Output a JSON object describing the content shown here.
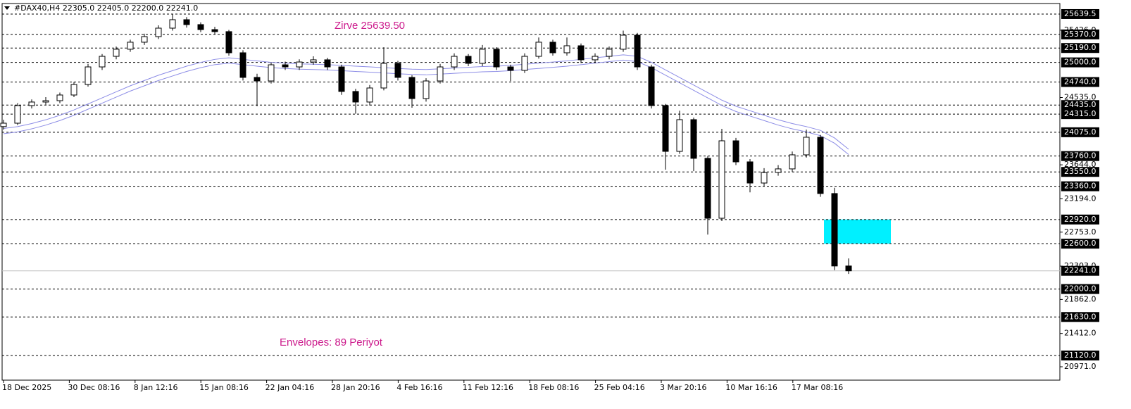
{
  "chart_data": {
    "type": "candlestick",
    "header": "#DAX40,H4  22305.0 22405.0 22200.0 22241.0",
    "annotations": [
      "Zirve 25639.50",
      "Envelopes: 89 Periyot"
    ],
    "x_labels": [
      "18 Dec 2025",
      "30 Dec 08:16",
      "8 Jan 12:16",
      "15 Jan 08:16",
      "22 Jan 04:16",
      "28 Jan 20:16",
      "4 Feb 16:16",
      "11 Feb 12:16",
      "18 Feb 08:16",
      "25 Feb 04:16",
      "3 Mar 20:16",
      "10 Mar 16:16",
      "17 Mar 08:16"
    ],
    "open": [
      24150,
      24195,
      24428,
      24475,
      24493,
      24568,
      24707,
      24940,
      25080,
      25174,
      25267,
      25341,
      25453,
      25565,
      25500,
      25434,
      25407,
      25127,
      24801,
      24754,
      24968,
      24940,
      25005,
      25034,
      24940,
      24615,
      24475,
      24661,
      24987,
      24801,
      24521,
      24754,
      24940,
      25080,
      24987,
      25174,
      24940,
      24894,
      25080,
      25267,
      25127,
      25220,
      25034,
      25080,
      25174,
      25360,
      24940,
      24428,
      23822,
      24242,
      23730,
      22937,
      23962,
      23683,
      23403,
      23543,
      23590,
      23776,
      24009,
      23264,
      22305
    ],
    "high": [
      24240,
      24460,
      24510,
      24540,
      24600,
      24740,
      24980,
      25110,
      25210,
      25300,
      25380,
      25490,
      25639.5,
      25600,
      25530,
      25470,
      25430,
      25160,
      24850,
      25000,
      25010,
      25040,
      25080,
      25060,
      24970,
      24650,
      24700,
      25200,
      25020,
      24830,
      24790,
      24980,
      25120,
      25110,
      25230,
      25200,
      24970,
      25120,
      25330,
      25300,
      25330,
      25250,
      25120,
      25210,
      25420,
      25390,
      24970,
      24450,
      24360,
      24270,
      23760,
      24120,
      24000,
      23720,
      23600,
      23640,
      23820,
      24110,
      24040,
      23340,
      22405
    ],
    "low": [
      24110,
      24170,
      24390,
      24440,
      24460,
      24540,
      24680,
      24900,
      25040,
      25140,
      25230,
      25310,
      25420,
      25460,
      25400,
      25370,
      25090,
      24760,
      24420,
      24720,
      24900,
      24900,
      24970,
      24900,
      24570,
      24320,
      24430,
      24630,
      24760,
      24400,
      24480,
      24720,
      24900,
      24950,
      24950,
      24900,
      24750,
      24860,
      25050,
      25090,
      25090,
      24990,
      24990,
      25040,
      25140,
      24900,
      24390,
      23580,
      23790,
      23560,
      22720,
      22900,
      23640,
      23280,
      23360,
      23500,
      23550,
      23740,
      23220,
      22250,
      22200
    ],
    "close": [
      24195,
      24428,
      24475,
      24493,
      24568,
      24707,
      24940,
      25080,
      25174,
      25267,
      25341,
      25453,
      25565,
      25500,
      25434,
      25407,
      25127,
      24801,
      24754,
      24968,
      24940,
      25005,
      25034,
      24940,
      24615,
      24475,
      24661,
      24987,
      24801,
      24521,
      24754,
      24940,
      25080,
      24987,
      25174,
      24940,
      24894,
      25080,
      25267,
      25127,
      25220,
      25034,
      25080,
      25174,
      25360,
      24940,
      24428,
      23822,
      24242,
      23730,
      22937,
      23962,
      23683,
      23403,
      23543,
      23590,
      23776,
      24009,
      23264,
      22305,
      22241
    ],
    "up_color": "#ffffff",
    "down_color": "#000000",
    "envelopes": [
      {
        "color": "#8c8ce6",
        "values": [
          24125,
          24150,
          24190,
          24240,
          24300,
          24370,
          24450,
          24530,
          24610,
          24690,
          24760,
          24830,
          24890,
          24950,
          25000,
          25040,
          25060,
          25040,
          25020,
          25000,
          24990,
          24980,
          24975,
          24970,
          24960,
          24950,
          24940,
          24930,
          24920,
          24910,
          24905,
          24915,
          24925,
          24935,
          24945,
          24950,
          24960,
          24975,
          24990,
          25005,
          25020,
          25040,
          25060,
          25080,
          25100,
          25080,
          25000,
          24900,
          24800,
          24700,
          24600,
          24500,
          24420,
          24360,
          24300,
          24240,
          24190,
          24150,
          24100,
          24000,
          23850
        ]
      },
      {
        "color": "#8c8ce6",
        "values": [
          24055,
          24080,
          24120,
          24170,
          24230,
          24300,
          24380,
          24460,
          24540,
          24620,
          24690,
          24760,
          24820,
          24880,
          24930,
          24970,
          24990,
          24970,
          24950,
          24930,
          24920,
          24910,
          24905,
          24900,
          24890,
          24880,
          24870,
          24860,
          24850,
          24840,
          24835,
          24845,
          24855,
          24865,
          24875,
          24880,
          24890,
          24905,
          24920,
          24935,
          24950,
          24970,
          24990,
          25010,
          25030,
          25010,
          24930,
          24830,
          24730,
          24630,
          24530,
          24430,
          24350,
          24290,
          24230,
          24170,
          24120,
          24080,
          24030,
          23930,
          23780
        ]
      }
    ],
    "ylim": [
      20794,
      25779
    ],
    "yticks": [
      {
        "value": 25426,
        "label": "25426.0"
      },
      {
        "value": 24535,
        "label": "24535.0"
      },
      {
        "value": 23644,
        "label": "23644.0"
      },
      {
        "value": 23194,
        "label": "23194.0"
      },
      {
        "value": 22753,
        "label": "22753.0"
      },
      {
        "value": 22303,
        "label": "22303.0"
      },
      {
        "value": 21862,
        "label": "21862.0"
      },
      {
        "value": 21412,
        "label": "21412.0"
      },
      {
        "value": 20971,
        "label": "20971.0"
      }
    ],
    "levels": [
      {
        "value": 25639.5,
        "label": "25639.5"
      },
      {
        "value": 25370,
        "label": "25370.0"
      },
      {
        "value": 25190,
        "label": "25190.0"
      },
      {
        "value": 25000,
        "label": "25000.0"
      },
      {
        "value": 24740,
        "label": "24740.0"
      },
      {
        "value": 24435,
        "label": "24435.0"
      },
      {
        "value": 24315,
        "label": "24315.0"
      },
      {
        "value": 24075,
        "label": "24075.0"
      },
      {
        "value": 23760,
        "label": "23760.0"
      },
      {
        "value": 23550,
        "label": "23550.0"
      },
      {
        "value": 23360,
        "label": "23360.0"
      },
      {
        "value": 22920,
        "label": "22920.0"
      },
      {
        "value": 22600,
        "label": "22600.0"
      },
      {
        "value": 22000,
        "label": "22000.0"
      },
      {
        "value": 21630,
        "label": "21630.0"
      },
      {
        "value": 21120,
        "label": "21120.0"
      }
    ],
    "current_price": {
      "value": 22241,
      "label": "22241.0"
    },
    "zone": {
      "from": 22600,
      "to": 22920,
      "color": "#00f0ff"
    }
  }
}
